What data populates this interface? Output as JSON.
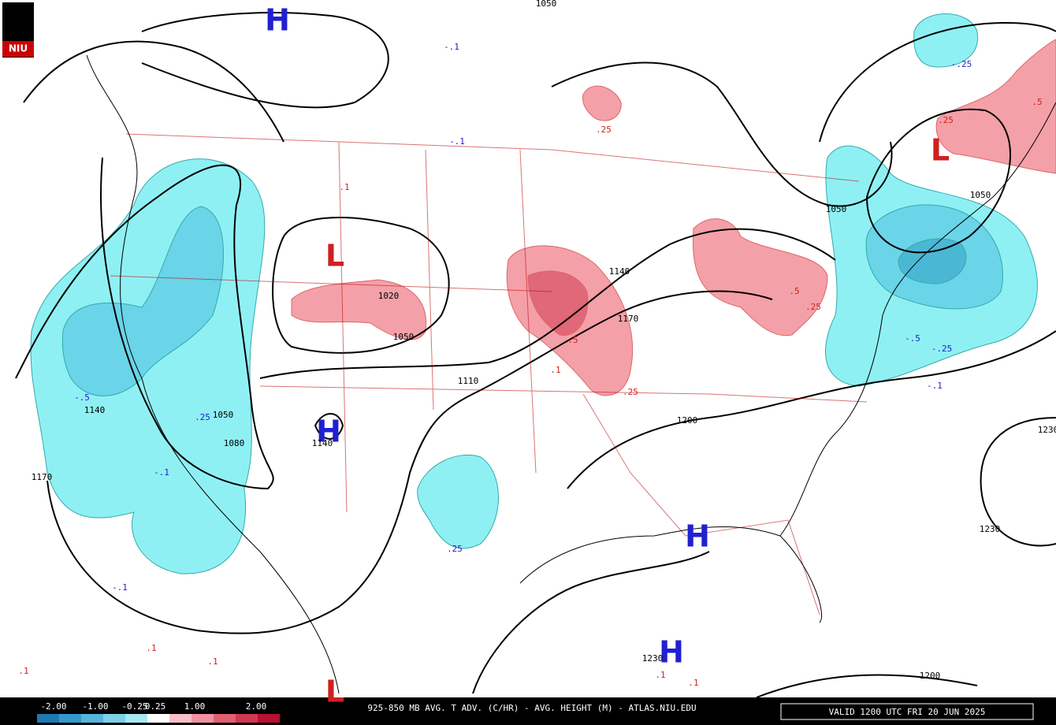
{
  "logo": "NIU",
  "centers": [
    "H",
    "L",
    "H",
    "H",
    "H",
    "L",
    "L"
  ],
  "contour_labels": [
    "1050",
    "1020",
    "1050",
    "1110",
    "1140",
    "1170",
    "1200",
    "1140",
    "1050",
    "1080",
    "1140",
    "1170",
    "1230",
    "1200",
    "1230",
    "1050",
    "1050",
    "1230"
  ],
  "advection_labels": [
    "-.1",
    "-.1",
    "-.5",
    ".25",
    "-.1",
    "-.1",
    "-.25",
    "-.5",
    "-.25",
    "-.1",
    ".25",
    ".25",
    ".1",
    ".25",
    ".1",
    ".5",
    ".5",
    ".25",
    ".1",
    ".1",
    ".1",
    ".1",
    ".1",
    ".25",
    ".5"
  ],
  "legend": {
    "labels": [
      "-2.00",
      "-1.00",
      "-0.25",
      "0.25",
      "1.00",
      "2.00"
    ]
  },
  "footer": {
    "title": "925-850 MB AVG. T ADV. (C/HR) - AVG. HEIGHT (M) - ATLAS.NIU.EDU",
    "valid": "VALID 1200 UTC FRI 20 JUN 2025"
  }
}
